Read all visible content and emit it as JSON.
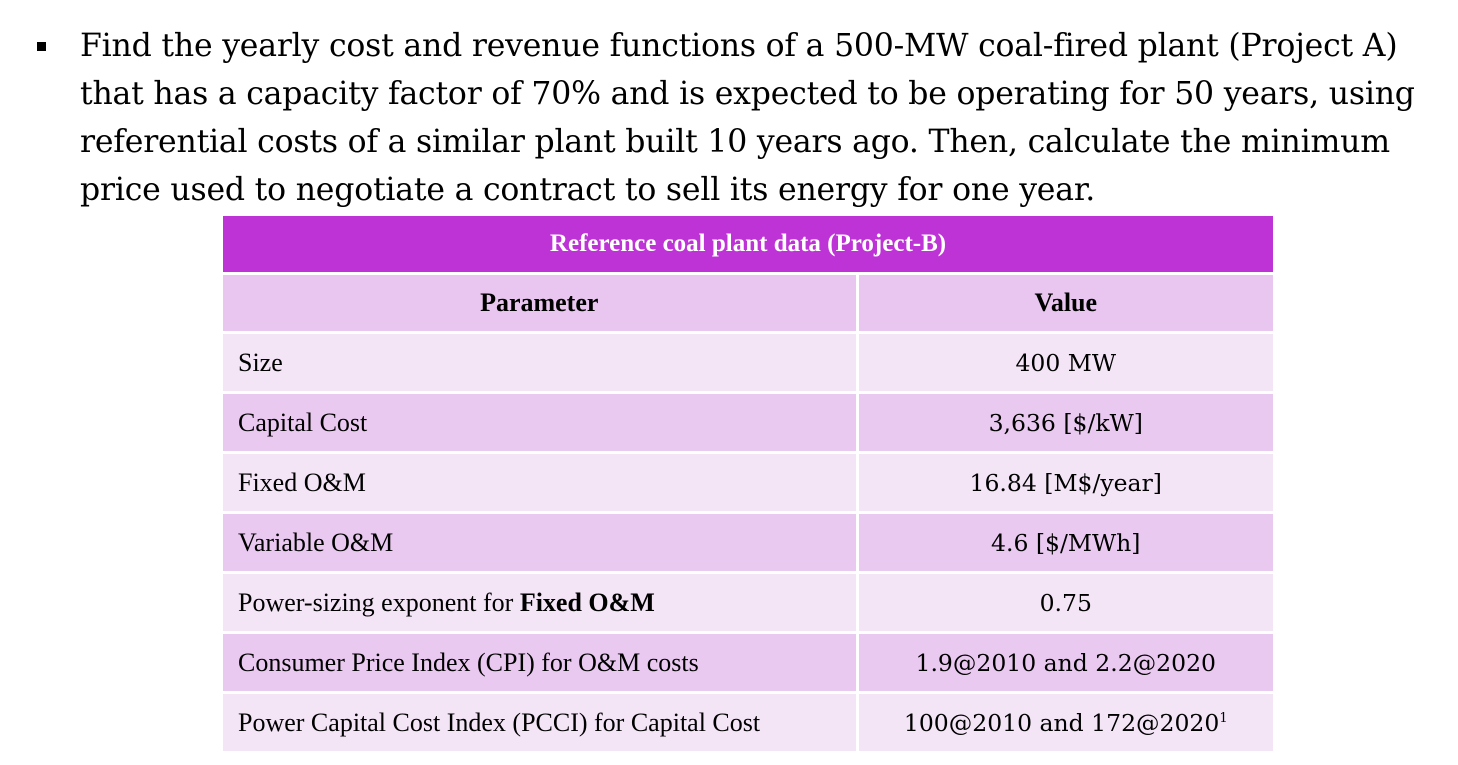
{
  "bullet": {
    "text": "Find the yearly cost and revenue functions of a 500-MW coal-fired plant (Project A) that has a capacity factor of 70% and is expected to be operating for 50 years, using referential costs of a similar plant built 10 years ago. Then, calculate the minimum price used to negotiate a contract to sell its energy for one year."
  },
  "table": {
    "title": "Reference coal plant data (Project-B)",
    "headers": {
      "parameter": "Parameter",
      "value": "Value"
    },
    "rows": [
      {
        "parameter": "Size",
        "value": "400 MW"
      },
      {
        "parameter": "Capital Cost",
        "value": "3,636 [$/kW]"
      },
      {
        "parameter": "Fixed O&M",
        "value": "16.84 [M$/year]"
      },
      {
        "parameter": "Variable O&M",
        "value": "4.6 [$/MWh]"
      },
      {
        "parameter": "Power-sizing exponent for ",
        "parameter_bold": "Fixed O&M",
        "value": "0.75"
      },
      {
        "parameter": "Consumer Price Index (CPI) for O&M costs",
        "value": "1.9@2010 and 2.2@2020"
      },
      {
        "parameter": "Power Capital Cost Index (PCCI) for Capital Cost",
        "value": "100@2010 and  172@2020",
        "value_sup": "1"
      }
    ]
  }
}
